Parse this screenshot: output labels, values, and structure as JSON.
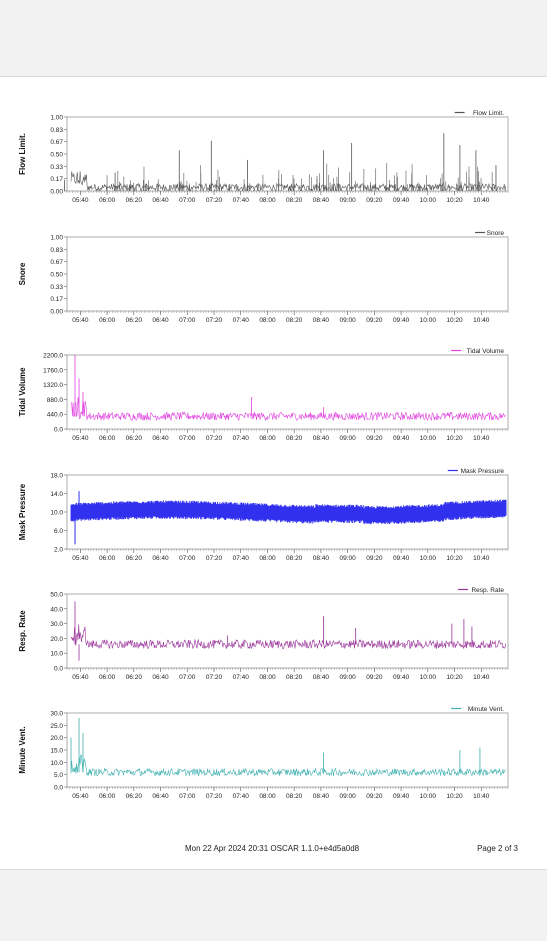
{
  "footer": {
    "center": "Mon 22 Apr 2024 20:31 OSCAR 1.1.0+e4d5a0d8",
    "page": "Page 2 of 3"
  },
  "x_ticks": [
    "05:40",
    "06:00",
    "06:20",
    "06:40",
    "07:00",
    "07:20",
    "07:40",
    "08:00",
    "08:20",
    "08:40",
    "09:00",
    "09:20",
    "09:40",
    "10:00",
    "10:20",
    "10:40"
  ],
  "chart_data": [
    {
      "type": "line",
      "ylabel": "Flow Limit.",
      "legend": "Flow Limit.",
      "color": "#555555",
      "ylim": [
        0,
        1.0
      ],
      "yticks": [
        "0.00",
        "0.17",
        "0.33",
        "0.50",
        "0.67",
        "0.83",
        "1.00"
      ],
      "series": [
        {
          "name": "Flow Limit.",
          "baseline": 0.05,
          "noise": 0.05,
          "spikes": [
            [
              5.47,
              0.15
            ],
            [
              6.1,
              0.25
            ],
            [
              6.9,
              0.55
            ],
            [
              7.3,
              0.68
            ],
            [
              7.75,
              0.42
            ],
            [
              8.7,
              0.55
            ],
            [
              9.05,
              0.65
            ],
            [
              10.2,
              0.78
            ],
            [
              10.4,
              0.62
            ],
            [
              10.6,
              0.55
            ],
            [
              10.85,
              0.35
            ]
          ]
        }
      ]
    },
    {
      "type": "line",
      "ylabel": "Snore",
      "legend": "Snore",
      "color": "#555555",
      "ylim": [
        0,
        1.0
      ],
      "yticks": [
        "0.00",
        "0.17",
        "0.33",
        "0.50",
        "0.67",
        "0.83",
        "1.00"
      ],
      "series": [
        {
          "name": "Snore",
          "baseline": 0,
          "noise": 0,
          "spikes": []
        }
      ]
    },
    {
      "type": "line",
      "ylabel": "Tidal Volume",
      "legend": "Tidal Volume",
      "color": "#e040e0",
      "ylim": [
        0,
        2200
      ],
      "yticks": [
        "0.0",
        "440.0",
        "880.0",
        "1320.0",
        "1760.0",
        "2200.0"
      ],
      "series": [
        {
          "name": "Tidal Volume",
          "baseline": 380,
          "noise": 120,
          "spikes": [
            [
              5.6,
              2200
            ],
            [
              5.65,
              1500
            ],
            [
              5.7,
              1100
            ],
            [
              7.8,
              950
            ],
            [
              8.7,
              650
            ]
          ]
        }
      ]
    },
    {
      "type": "area",
      "ylabel": "Mask Pressure",
      "legend": "Mask Pressure",
      "color": "#3030ee",
      "ylim": [
        2.0,
        18.0
      ],
      "yticks": [
        "2.0",
        "6.0",
        "10.0",
        "14.0",
        "18.0"
      ],
      "series": [
        {
          "name": "Mask Pressure",
          "low": 8.2,
          "high": 11.6,
          "spikes": [
            [
              5.6,
              3.0
            ],
            [
              5.65,
              14.5
            ]
          ]
        }
      ]
    },
    {
      "type": "line",
      "ylabel": "Resp. Rate",
      "legend": "Resp. Rate",
      "color": "#993399",
      "ylim": [
        0,
        50
      ],
      "yticks": [
        "0.0",
        "10.0",
        "20.0",
        "30.0",
        "40.0",
        "50.0"
      ],
      "series": [
        {
          "name": "Resp. Rate",
          "baseline": 16,
          "noise": 3,
          "spikes": [
            [
              5.6,
              45
            ],
            [
              5.65,
              5
            ],
            [
              7.5,
              22
            ],
            [
              8.7,
              35
            ],
            [
              9.1,
              27
            ],
            [
              10.3,
              30
            ],
            [
              10.45,
              33
            ],
            [
              10.55,
              28
            ]
          ]
        }
      ]
    },
    {
      "type": "line",
      "ylabel": "Minute Vent.",
      "legend": "Minute Vent.",
      "color": "#40b0b0",
      "ylim": [
        0,
        30
      ],
      "yticks": [
        "0.0",
        "5.0",
        "10.0",
        "15.0",
        "20.0",
        "25.0",
        "30.0"
      ],
      "series": [
        {
          "name": "Minute Vent.",
          "baseline": 6,
          "noise": 1.5,
          "spikes": [
            [
              5.55,
              20
            ],
            [
              5.65,
              28
            ],
            [
              5.7,
              22
            ],
            [
              8.7,
              14
            ],
            [
              10.4,
              15
            ],
            [
              10.65,
              16
            ]
          ]
        }
      ]
    }
  ]
}
